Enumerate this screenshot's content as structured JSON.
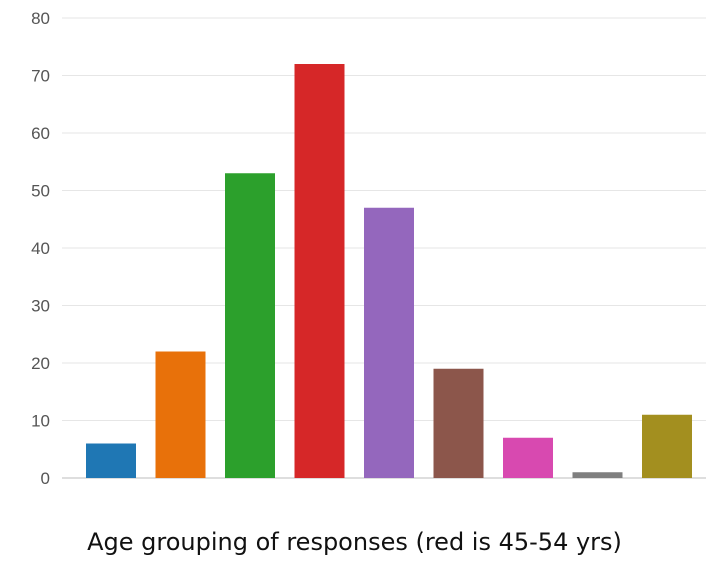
{
  "caption": "Age grouping of responses (red is 45-54 yrs)",
  "chart_data": {
    "type": "bar",
    "title": "",
    "xlabel": "",
    "ylabel": "",
    "categories": [
      "",
      "",
      "",
      "",
      "",
      "",
      "",
      "",
      ""
    ],
    "values": [
      6,
      22,
      53,
      72,
      47,
      19,
      7,
      1,
      11
    ],
    "colors": [
      "#1f77b4",
      "#e8710a",
      "#2ca02c",
      "#d62728",
      "#9467bd",
      "#8c564b",
      "#d849b0",
      "#7f7f7f",
      "#a38f1f"
    ],
    "ylim": [
      0,
      80
    ],
    "yticks": [
      0,
      10,
      20,
      30,
      40,
      50,
      60,
      70,
      80
    ],
    "grid": true,
    "legend": "none"
  }
}
